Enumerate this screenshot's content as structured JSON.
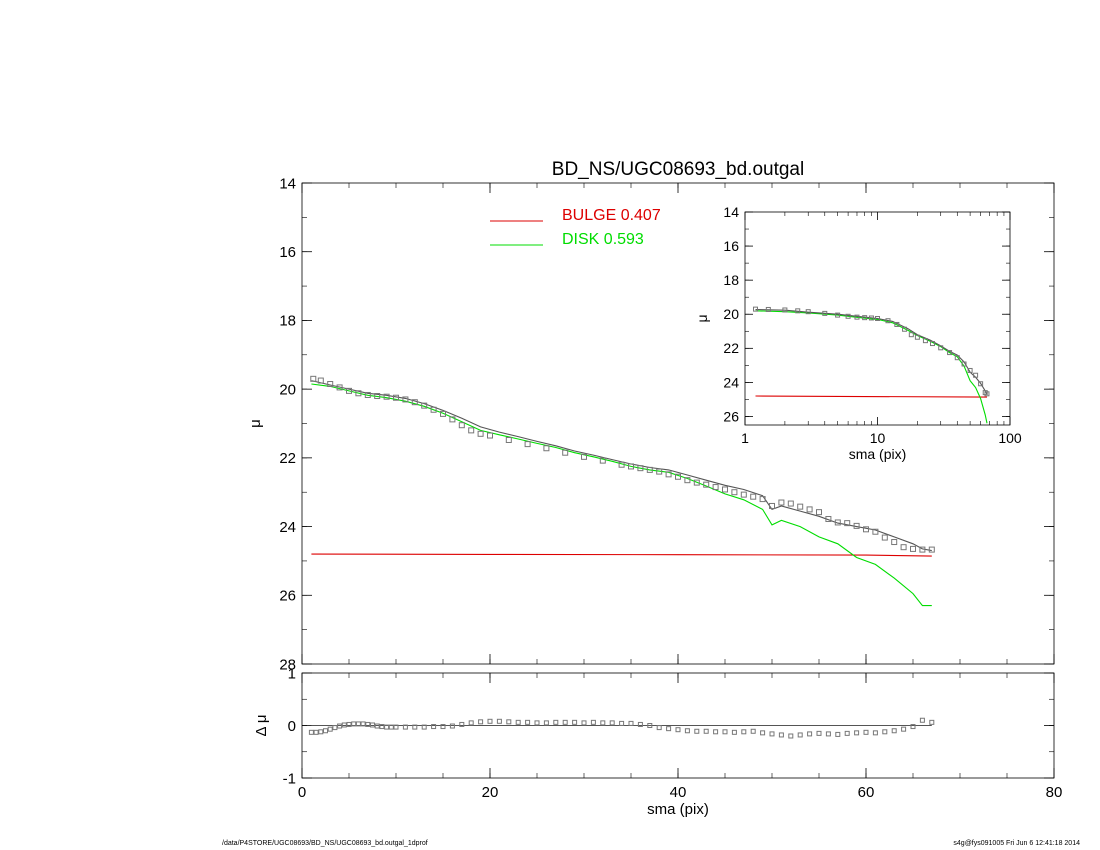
{
  "page": {
    "footer_left": "/data/P4STORE/UGC08693/BD_NS/UGC08693_bd.outgal_1dprof",
    "footer_right": "s4g@fys091005  Fri Jun  6 12:41:18 2014"
  },
  "colors": {
    "data": "#000000",
    "total_model": "#555555",
    "bulge": "#dd0000",
    "disk": "#00dd00",
    "markers": "#777777",
    "axes": "#000000"
  },
  "chart_data": [
    {
      "id": "main",
      "type": "scatter",
      "title": "BD_NS/UGC08693_bd.outgal",
      "xlabel": "",
      "ylabel": "μ",
      "xlim": [
        0,
        80
      ],
      "ylim": [
        28,
        14
      ],
      "x_ticks": [
        0,
        20,
        40,
        60,
        80
      ],
      "y_ticks": [
        14,
        16,
        18,
        20,
        22,
        24,
        26,
        28
      ],
      "legend": {
        "placement": "top-center",
        "entries": [
          {
            "label": "BULGE  0.407",
            "color": "#dd0000"
          },
          {
            "label": "DISK  0.593",
            "color": "#00dd00"
          }
        ]
      },
      "series": [
        {
          "kind": "points",
          "x": [
            1.2,
            2,
            3,
            4,
            5,
            6,
            7,
            8,
            9,
            10,
            11,
            12,
            13,
            14,
            15,
            16,
            17,
            18,
            19,
            20,
            22,
            24,
            26,
            28,
            30,
            32,
            34,
            35,
            36,
            37,
            38,
            39,
            40,
            41,
            42,
            43,
            44,
            45,
            46,
            47,
            48,
            49,
            50,
            51,
            52,
            53,
            54,
            55,
            56,
            57,
            58,
            59,
            60,
            61,
            62,
            63,
            64,
            65,
            66,
            67
          ],
          "y": [
            19.7,
            19.75,
            19.85,
            19.95,
            20.05,
            20.12,
            20.17,
            20.2,
            20.22,
            20.25,
            20.3,
            20.38,
            20.48,
            20.6,
            20.72,
            20.88,
            21.05,
            21.2,
            21.3,
            21.35,
            21.48,
            21.6,
            21.72,
            21.85,
            21.97,
            22.08,
            22.2,
            22.25,
            22.3,
            22.35,
            22.4,
            22.48,
            22.55,
            22.65,
            22.72,
            22.78,
            22.85,
            22.92,
            23.0,
            23.07,
            23.13,
            23.2,
            23.4,
            23.3,
            23.33,
            23.42,
            23.5,
            23.58,
            23.78,
            23.88,
            23.9,
            23.98,
            24.08,
            24.15,
            24.32,
            24.45,
            24.6,
            24.65,
            24.67,
            24.67
          ]
        },
        {
          "name": "BULGE  0.407",
          "kind": "line",
          "x": [
            1,
            20,
            40,
            60,
            67
          ],
          "y": [
            24.8,
            24.81,
            24.82,
            24.83,
            24.86
          ]
        },
        {
          "name": "DISK  0.593",
          "kind": "line",
          "x": [
            1,
            3,
            5,
            7,
            9,
            11,
            13,
            15,
            17,
            19,
            21,
            23,
            25,
            27,
            29,
            31,
            33,
            35,
            37,
            39,
            41,
            43,
            45,
            47,
            49,
            50,
            51,
            53,
            55,
            57,
            59,
            61,
            63,
            65,
            66,
            67
          ],
          "y": [
            19.85,
            19.92,
            20.05,
            20.18,
            20.25,
            20.35,
            20.5,
            20.7,
            20.95,
            21.2,
            21.33,
            21.45,
            21.58,
            21.7,
            21.85,
            21.97,
            22.1,
            22.25,
            22.35,
            22.42,
            22.6,
            22.82,
            23.05,
            23.22,
            23.5,
            23.95,
            23.82,
            24.0,
            24.3,
            24.5,
            24.9,
            25.1,
            25.5,
            25.95,
            26.3,
            26.3
          ]
        },
        {
          "kind": "line",
          "x": [
            1,
            3,
            5,
            7,
            9,
            11,
            13,
            15,
            17,
            19,
            21,
            23,
            25,
            27,
            29,
            31,
            33,
            35,
            37,
            39,
            41,
            43,
            45,
            47,
            49,
            50,
            51,
            53,
            55,
            57,
            59,
            61,
            63,
            65,
            66,
            67
          ],
          "y": [
            19.75,
            19.88,
            20.0,
            20.12,
            20.18,
            20.27,
            20.42,
            20.62,
            20.85,
            21.1,
            21.25,
            21.38,
            21.52,
            21.65,
            21.8,
            21.92,
            22.05,
            22.18,
            22.28,
            22.35,
            22.5,
            22.65,
            22.8,
            22.92,
            23.1,
            23.5,
            23.4,
            23.55,
            23.7,
            23.9,
            24.0,
            24.1,
            24.3,
            24.5,
            24.65,
            24.7
          ]
        }
      ]
    },
    {
      "id": "inset",
      "type": "scatter",
      "xscale": "log",
      "xlabel": "sma (pix)",
      "ylabel": "μ",
      "xlim": [
        1,
        100
      ],
      "ylim": [
        26.5,
        14
      ],
      "x_ticks": [
        1,
        10,
        100
      ],
      "y_ticks": [
        14,
        16,
        18,
        20,
        22,
        24,
        26
      ],
      "series": [
        {
          "kind": "points",
          "x": [
            1.2,
            1.5,
            2,
            2.5,
            3,
            4,
            5,
            6,
            7,
            8,
            9,
            10,
            12,
            14,
            16,
            18,
            20,
            23,
            26,
            30,
            35,
            40,
            45,
            50,
            55,
            60,
            65,
            67
          ],
          "y": [
            19.7,
            19.72,
            19.75,
            19.8,
            19.85,
            19.95,
            20.05,
            20.12,
            20.17,
            20.2,
            20.22,
            20.25,
            20.38,
            20.6,
            20.88,
            21.2,
            21.35,
            21.55,
            21.72,
            21.97,
            22.25,
            22.55,
            22.92,
            23.3,
            23.58,
            24.08,
            24.6,
            24.67
          ]
        },
        {
          "name": "BULGE  0.407",
          "kind": "line",
          "x": [
            1.2,
            67
          ],
          "y": [
            24.8,
            24.86
          ]
        },
        {
          "name": "DISK  0.593",
          "kind": "line",
          "x": [
            1.2,
            2,
            3,
            5,
            7,
            10,
            13,
            17,
            20,
            25,
            30,
            35,
            40,
            45,
            50,
            55,
            60,
            65,
            67
          ],
          "y": [
            19.8,
            19.85,
            19.92,
            20.05,
            20.18,
            20.3,
            20.5,
            20.95,
            21.25,
            21.58,
            21.9,
            22.25,
            22.5,
            23.05,
            23.9,
            24.3,
            24.95,
            25.9,
            26.4
          ]
        },
        {
          "kind": "line",
          "x": [
            1.2,
            2,
            3,
            5,
            7,
            10,
            13,
            17,
            20,
            25,
            30,
            35,
            40,
            45,
            50,
            55,
            60,
            65,
            67
          ],
          "y": [
            19.72,
            19.76,
            19.88,
            20.0,
            20.12,
            20.25,
            20.42,
            20.85,
            21.2,
            21.52,
            21.85,
            22.18,
            22.4,
            22.8,
            23.4,
            23.7,
            24.05,
            24.5,
            24.7
          ]
        }
      ]
    },
    {
      "id": "residual",
      "type": "scatter",
      "xlabel": "sma (pix)",
      "ylabel": "Δ μ",
      "xlim": [
        0,
        80
      ],
      "ylim": [
        -1,
        1
      ],
      "x_ticks": [
        0,
        20,
        40,
        60,
        80
      ],
      "y_ticks": [
        -1,
        0,
        1
      ],
      "series": [
        {
          "kind": "points",
          "x": [
            1,
            1.5,
            2,
            2.5,
            3,
            3.5,
            4,
            4.5,
            5,
            5.5,
            6,
            6.5,
            7,
            7.5,
            8,
            8.5,
            9,
            9.5,
            10,
            11,
            12,
            13,
            14,
            15,
            16,
            17,
            18,
            19,
            20,
            21,
            22,
            23,
            24,
            25,
            26,
            27,
            28,
            29,
            30,
            31,
            32,
            33,
            34,
            35,
            36,
            37,
            38,
            39,
            40,
            41,
            42,
            43,
            44,
            45,
            46,
            47,
            48,
            49,
            50,
            51,
            52,
            53,
            54,
            55,
            56,
            57,
            58,
            59,
            60,
            61,
            62,
            63,
            64,
            65,
            66,
            67
          ],
          "y": [
            -0.13,
            -0.13,
            -0.12,
            -0.1,
            -0.07,
            -0.04,
            -0.01,
            0.01,
            0.02,
            0.03,
            0.03,
            0.03,
            0.02,
            0.01,
            -0.01,
            -0.02,
            -0.03,
            -0.03,
            -0.03,
            -0.03,
            -0.03,
            -0.03,
            -0.02,
            -0.02,
            -0.01,
            0.02,
            0.05,
            0.07,
            0.08,
            0.08,
            0.07,
            0.06,
            0.06,
            0.05,
            0.05,
            0.06,
            0.06,
            0.06,
            0.05,
            0.06,
            0.05,
            0.05,
            0.04,
            0.04,
            0.02,
            0.0,
            -0.04,
            -0.06,
            -0.08,
            -0.1,
            -0.11,
            -0.11,
            -0.12,
            -0.12,
            -0.13,
            -0.12,
            -0.11,
            -0.14,
            -0.16,
            -0.18,
            -0.2,
            -0.18,
            -0.16,
            -0.15,
            -0.16,
            -0.17,
            -0.15,
            -0.14,
            -0.13,
            -0.14,
            -0.12,
            -0.1,
            -0.07,
            -0.02,
            0.1,
            0.06
          ]
        },
        {
          "kind": "line",
          "x": [
            1,
            67
          ],
          "y": [
            0,
            0
          ]
        }
      ]
    }
  ]
}
